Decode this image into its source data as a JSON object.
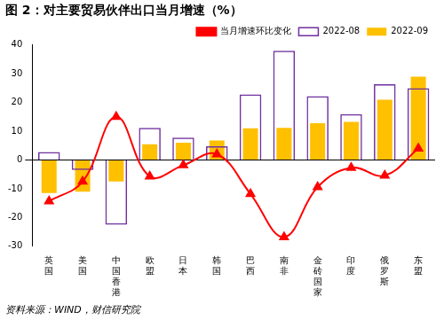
{
  "chart_data": {
    "type": "bar",
    "title": "图 2：对主要贸易伙伴出口当月增速（%）",
    "source": "资料来源：WIND，财信研究院",
    "categories": [
      "英国",
      "美国",
      "中国香港",
      "欧盟",
      "日本",
      "韩国",
      "巴西",
      "南非",
      "金砖国家",
      "印度",
      "俄罗斯",
      "东盟"
    ],
    "series": [
      {
        "name": "2022-09",
        "type": "bar",
        "color": "#FFC000",
        "values": [
          -11.5,
          -11,
          -7.5,
          5.5,
          6,
          6.8,
          11,
          11.2,
          12.8,
          13.3,
          21,
          29
        ]
      },
      {
        "name": "2022-08",
        "type": "bar",
        "color": "#7030A0",
        "values": [
          2.8,
          -3.5,
          -22.5,
          11.2,
          7.8,
          4.8,
          22.8,
          38,
          22.2,
          16,
          26.4,
          25
        ]
      },
      {
        "name": "当月增速环比变化",
        "type": "line",
        "color": "#FF0000",
        "marker": "triangle",
        "values": [
          -14.3,
          -7.5,
          15,
          -5.7,
          -1.8,
          2,
          -11.8,
          -26.8,
          -9.4,
          -2.7,
          -5.4,
          4
        ]
      }
    ],
    "ylim": [
      -30,
      40
    ],
    "yticks": [
      -30,
      -20,
      -10,
      0,
      10,
      20,
      30,
      40
    ],
    "legend": "top",
    "grid": false
  }
}
